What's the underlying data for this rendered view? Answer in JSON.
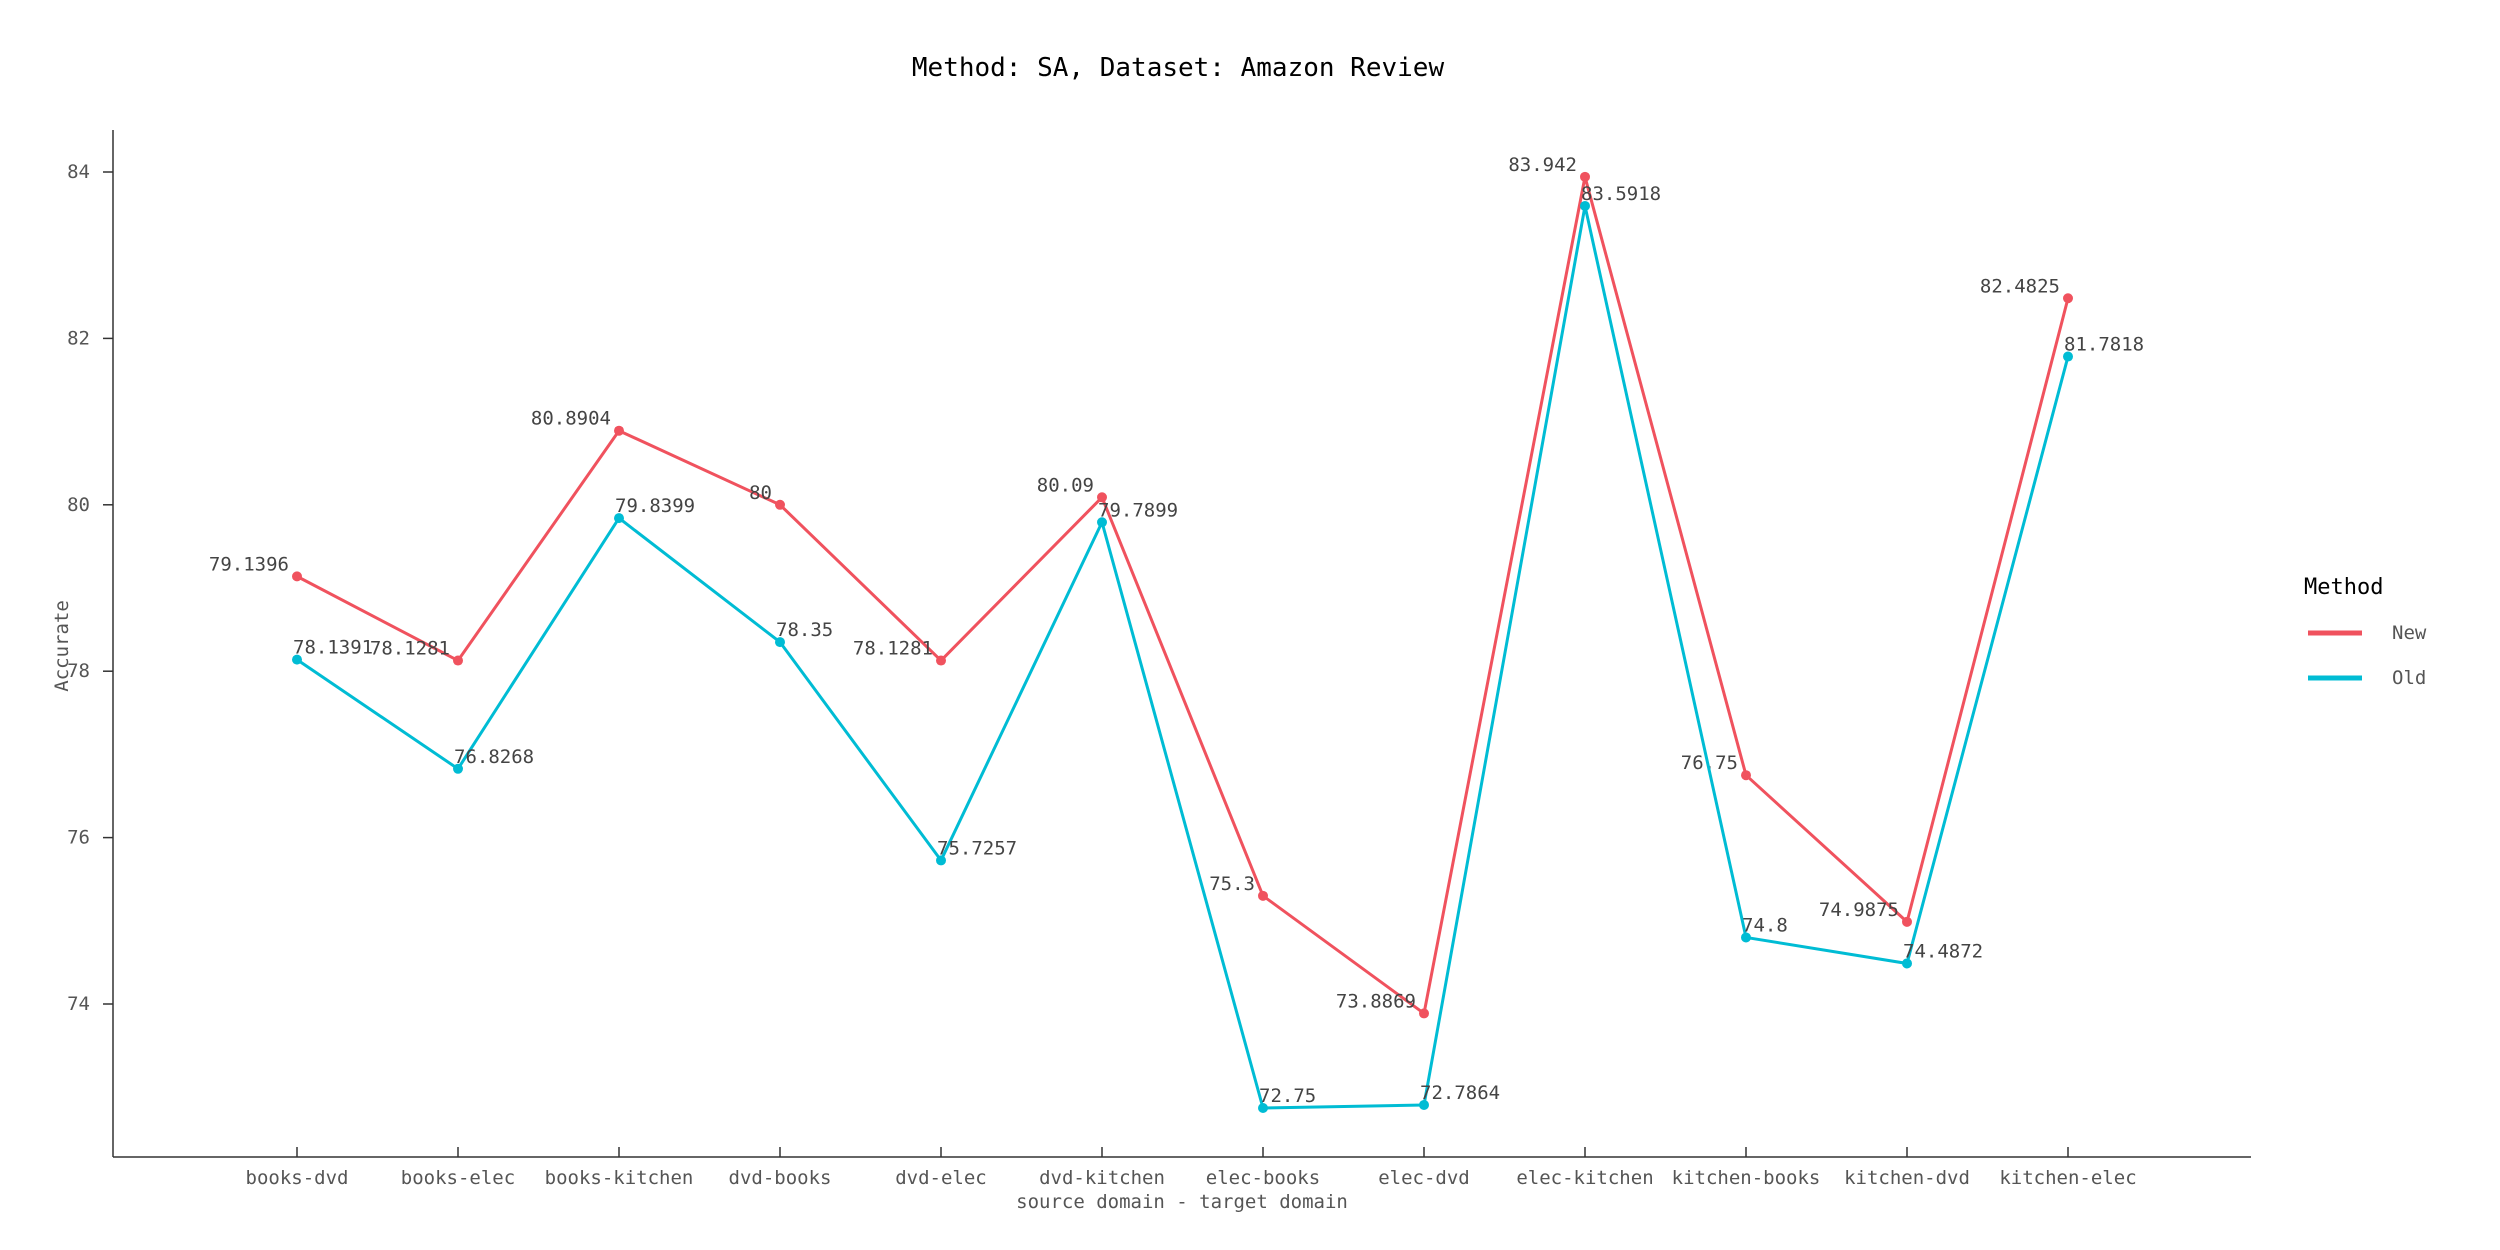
{
  "chart_data": {
    "type": "line",
    "title": "Method: SA, Dataset: Amazon Review",
    "xlabel": "source domain - target domain",
    "ylabel": "Accurate",
    "categories": [
      "books-dvd",
      "books-elec",
      "books-kitchen",
      "dvd-books",
      "dvd-elec",
      "dvd-kitchen",
      "elec-books",
      "elec-dvd",
      "elec-kitchen",
      "kitchen-books",
      "kitchen-dvd",
      "kitchen-elec"
    ],
    "yticks": [
      74,
      76,
      78,
      80,
      82,
      84
    ],
    "ylim": [
      72.2,
      84.5
    ],
    "grid": false,
    "legend": {
      "title": "Method",
      "position": "right"
    },
    "series": [
      {
        "name": "New",
        "color": "#f0525e",
        "values": [
          79.1396,
          78.1281,
          80.8904,
          80,
          78.1281,
          80.09,
          75.3,
          73.8869,
          83.942,
          76.75,
          74.9875,
          82.4825
        ],
        "labels": [
          "79.1396",
          "78.1281",
          "80.8904",
          "80",
          "78.1281",
          "80.09",
          "75.3",
          "73.8869",
          "83.942",
          "76.75",
          "74.9875",
          "82.4825"
        ]
      },
      {
        "name": "Old",
        "color": "#00bcd4",
        "values": [
          78.1391,
          76.8268,
          79.8399,
          78.35,
          75.7257,
          79.7899,
          72.75,
          72.7864,
          83.5918,
          74.8,
          74.4872,
          81.7818
        ],
        "labels": [
          "78.1391",
          "76.8268",
          "79.8399",
          "78.35",
          "75.7257",
          "79.7899",
          "72.75",
          "72.7864",
          "83.5918",
          "74.8",
          "74.4872",
          "81.7818"
        ]
      }
    ]
  }
}
